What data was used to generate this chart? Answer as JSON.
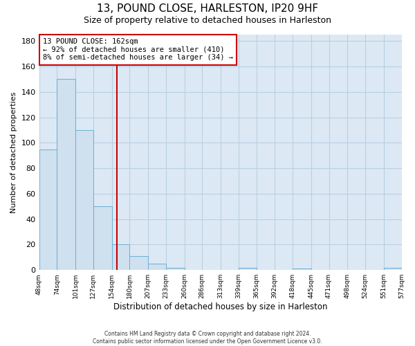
{
  "title": "13, POUND CLOSE, HARLESTON, IP20 9HF",
  "subtitle": "Size of property relative to detached houses in Harleston",
  "xlabel": "Distribution of detached houses by size in Harleston",
  "ylabel": "Number of detached properties",
  "bar_color": "#cfe0ef",
  "bar_edge_color": "#6aaed6",
  "plot_bg_color": "#dce9f5",
  "fig_bg_color": "#ffffff",
  "grid_color": "#b8cfe0",
  "vline_color": "#cc0000",
  "vline_x": 162,
  "annotation_text": "13 POUND CLOSE: 162sqm\n← 92% of detached houses are smaller (410)\n8% of semi-detached houses are larger (34) →",
  "annotation_box_color": "#ffffff",
  "annotation_box_edge_color": "#cc0000",
  "ylim": [
    0,
    185
  ],
  "yticks": [
    0,
    20,
    40,
    60,
    80,
    100,
    120,
    140,
    160,
    180
  ],
  "bin_edges": [
    48,
    74,
    101,
    127,
    154,
    180,
    207,
    233,
    260,
    286,
    313,
    339,
    365,
    392,
    418,
    445,
    471,
    498,
    524,
    551,
    577
  ],
  "bin_labels": [
    "48sqm",
    "74sqm",
    "101sqm",
    "127sqm",
    "154sqm",
    "180sqm",
    "207sqm",
    "233sqm",
    "260sqm",
    "286sqm",
    "313sqm",
    "339sqm",
    "365sqm",
    "392sqm",
    "418sqm",
    "445sqm",
    "471sqm",
    "498sqm",
    "524sqm",
    "551sqm",
    "577sqm"
  ],
  "counts": [
    95,
    150,
    110,
    50,
    20,
    11,
    5,
    2,
    0,
    0,
    0,
    2,
    0,
    0,
    1,
    0,
    0,
    0,
    0,
    2
  ],
  "footer_line1": "Contains HM Land Registry data © Crown copyright and database right 2024.",
  "footer_line2": "Contains public sector information licensed under the Open Government Licence v3.0."
}
